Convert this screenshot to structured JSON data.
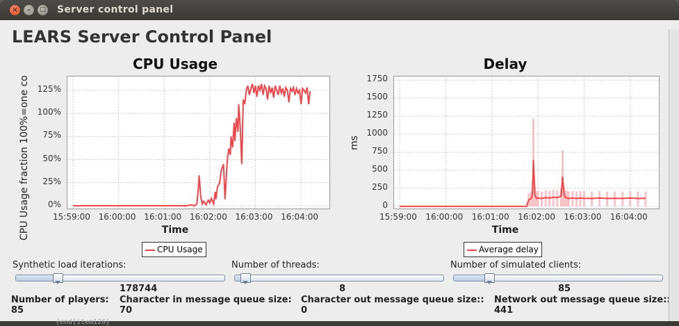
{
  "window": {
    "title": "Server control panel",
    "close_glyph": "×",
    "min_glyph": "–",
    "max_glyph": "□"
  },
  "app_title": "LEARS Server Control Panel",
  "background_text": "{end[item126}",
  "chart_data": [
    {
      "type": "line",
      "title": "CPU Usage",
      "xlabel": "Time",
      "ylabel": "CPU Usage fraction 100%=one co",
      "x_ticks": [
        "15:59:00",
        "16:00:00",
        "16:01:00",
        "16:02:00",
        "16:03:00",
        "16:04:00"
      ],
      "y_ticks": [
        "0%",
        "25%",
        "50%",
        "75%",
        "100%",
        "125%"
      ],
      "ylim": [
        -0.03,
        1.4
      ],
      "xlim_seconds_from_first_tick": [
        0,
        330
      ],
      "legend_position": "bottom-center",
      "color": "#f0454a",
      "series": [
        {
          "name": "CPU Usage",
          "x": [
            0,
            150,
            155,
            160,
            163,
            165,
            166,
            168,
            170,
            172,
            175,
            178,
            180,
            182,
            185,
            187,
            188,
            190,
            193,
            195,
            198,
            200,
            203,
            205,
            207,
            208,
            210,
            212,
            213,
            215,
            217,
            218,
            220,
            222,
            224,
            226,
            228,
            230,
            232,
            234,
            236,
            238,
            240,
            242,
            244,
            246,
            248,
            250,
            252,
            254,
            256,
            258,
            260,
            262,
            264,
            266,
            268,
            270,
            272,
            274,
            276,
            278,
            280,
            282,
            284,
            286,
            288,
            290,
            292,
            294,
            296,
            298,
            300,
            302,
            304,
            306,
            308,
            310,
            312
          ],
          "y": [
            0,
            0,
            0.01,
            0,
            0.02,
            0.2,
            0.33,
            0.1,
            0.02,
            0.05,
            0.01,
            0.06,
            0.03,
            0.08,
            0.02,
            0.15,
            0.07,
            0.2,
            0.25,
            0.38,
            0.45,
            0.07,
            0.5,
            0.62,
            0.55,
            0.75,
            0.63,
            0.9,
            0.7,
            0.95,
            0.8,
            1.1,
            0.85,
            0.45,
            1.15,
            1.1,
            1.25,
            1.3,
            1.2,
            1.27,
            1.32,
            1.22,
            1.3,
            1.18,
            1.3,
            1.25,
            1.32,
            1.2,
            1.3,
            1.27,
            1.15,
            1.3,
            1.22,
            1.28,
            1.17,
            1.3,
            1.25,
            1.2,
            1.3,
            1.22,
            1.27,
            1.18,
            1.28,
            1.25,
            1.12,
            1.27,
            1.24,
            1.28,
            1.2,
            1.27,
            1.22,
            1.25,
            1.1,
            1.27,
            1.25,
            1.22,
            1.28,
            1.1,
            1.24
          ]
        }
      ]
    },
    {
      "type": "line",
      "title": "Delay",
      "xlabel": "Time",
      "ylabel": "ms",
      "x_ticks": [
        "15:59:00",
        "16:00:00",
        "16:01:00",
        "16:02:00",
        "16:03:00",
        "16:04:00"
      ],
      "y_ticks": [
        "0",
        "250",
        "500",
        "750",
        "1000",
        "1250",
        "1500",
        "1750"
      ],
      "ylim": [
        -30,
        1800
      ],
      "xlim_seconds_from_first_tick": [
        0,
        330
      ],
      "legend_position": "bottom-center",
      "color": "#f0454a",
      "series": [
        {
          "name": "Average delay",
          "x": [
            0,
            160,
            165,
            168,
            170,
            172,
            173,
            174,
            176,
            178,
            180,
            185,
            190,
            195,
            200,
            205,
            210,
            212,
            214,
            216,
            218,
            220,
            225,
            230,
            235,
            240,
            250,
            260,
            270,
            280,
            290,
            300,
            310,
            320
          ],
          "y": [
            0,
            0,
            0,
            90,
            100,
            120,
            210,
            640,
            160,
            110,
            115,
            110,
            120,
            115,
            125,
            120,
            140,
            410,
            160,
            120,
            115,
            110,
            115,
            110,
            115,
            112,
            110,
            115,
            110,
            112,
            110,
            115,
            110,
            112
          ]
        }
      ]
    }
  ],
  "controls": {
    "synthetic_load": {
      "label": "Synthetic load iterations:",
      "value": "178744",
      "level": 0.2
    },
    "threads": {
      "label": "Number of threads:",
      "value": "8",
      "level": 0.05
    },
    "clients": {
      "label": "Number of simulated clients:",
      "value": "85",
      "level": 0.17
    }
  },
  "stats": {
    "players": {
      "label": "Number of players:",
      "value": "85"
    },
    "char_in": {
      "label": "Character in message queue size:",
      "value": "70"
    },
    "char_out": {
      "label": "Character out message queue size::",
      "value": "0"
    },
    "net_out": {
      "label": "Network out message queue size::",
      "value": "441"
    }
  }
}
